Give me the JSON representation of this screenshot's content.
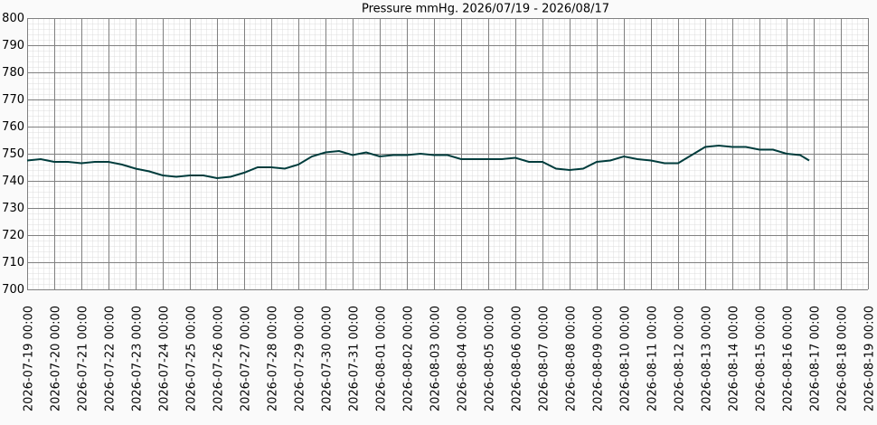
{
  "chart_data": {
    "type": "line",
    "title": "Pressure mmHg. 2026/07/19 - 2026/08/17",
    "x": [
      "2026-07-19 00:00",
      "2026-07-19 12:00",
      "2026-07-20 00:00",
      "2026-07-20 12:00",
      "2026-07-21 00:00",
      "2026-07-21 12:00",
      "2026-07-22 00:00",
      "2026-07-22 12:00",
      "2026-07-23 00:00",
      "2026-07-23 12:00",
      "2026-07-24 00:00",
      "2026-07-24 12:00",
      "2026-07-25 00:00",
      "2026-07-25 12:00",
      "2026-07-26 00:00",
      "2026-07-26 12:00",
      "2026-07-27 00:00",
      "2026-07-27 12:00",
      "2026-07-28 00:00",
      "2026-07-28 12:00",
      "2026-07-29 00:00",
      "2026-07-29 12:00",
      "2026-07-30 00:00",
      "2026-07-30 12:00",
      "2026-07-31 00:00",
      "2026-07-31 12:00",
      "2026-08-01 00:00",
      "2026-08-01 12:00",
      "2026-08-02 00:00",
      "2026-08-02 12:00",
      "2026-08-03 00:00",
      "2026-08-03 12:00",
      "2026-08-04 00:00",
      "2026-08-04 12:00",
      "2026-08-05 00:00",
      "2026-08-05 12:00",
      "2026-08-06 00:00",
      "2026-08-06 12:00",
      "2026-08-07 00:00",
      "2026-08-07 12:00",
      "2026-08-08 00:00",
      "2026-08-08 12:00",
      "2026-08-09 00:00",
      "2026-08-09 12:00",
      "2026-08-10 00:00",
      "2026-08-10 12:00",
      "2026-08-11 00:00",
      "2026-08-11 12:00",
      "2026-08-12 00:00",
      "2026-08-12 12:00",
      "2026-08-13 00:00",
      "2026-08-13 12:00",
      "2026-08-14 00:00",
      "2026-08-14 12:00",
      "2026-08-15 00:00",
      "2026-08-15 12:00",
      "2026-08-16 00:00",
      "2026-08-16 12:00",
      "2026-08-16 20:00"
    ],
    "series": [
      {
        "name": "Pressure",
        "color": "#003c3c",
        "values": [
          747.5,
          748,
          747,
          747,
          746.5,
          747,
          747,
          746,
          744.5,
          743.5,
          742,
          741.5,
          742,
          742,
          741,
          741.5,
          743,
          745,
          745,
          744.5,
          746,
          749,
          750.5,
          751,
          749.5,
          750.5,
          749,
          749.5,
          749.5,
          750,
          749.5,
          749.5,
          748,
          748,
          748,
          748,
          748.5,
          747,
          747,
          744.5,
          744,
          744.5,
          747,
          747.5,
          749,
          748,
          747.5,
          746.5,
          746.5,
          749.5,
          752.5,
          753,
          752.5,
          752.5,
          751.5,
          751.5,
          750,
          749.5,
          747.5
        ]
      }
    ],
    "xlim": [
      "2026-07-19 00:00",
      "2026-08-19 00:00"
    ],
    "xticks": [
      "2026-07-19 00:00",
      "2026-07-20 00:00",
      "2026-07-21 00:00",
      "2026-07-22 00:00",
      "2026-07-23 00:00",
      "2026-07-24 00:00",
      "2026-07-25 00:00",
      "2026-07-26 00:00",
      "2026-07-27 00:00",
      "2026-07-28 00:00",
      "2026-07-29 00:00",
      "2026-07-30 00:00",
      "2026-07-31 00:00",
      "2026-08-01 00:00",
      "2026-08-02 00:00",
      "2026-08-03 00:00",
      "2026-08-04 00:00",
      "2026-08-05 00:00",
      "2026-08-06 00:00",
      "2026-08-07 00:00",
      "2026-08-08 00:00",
      "2026-08-09 00:00",
      "2026-08-10 00:00",
      "2026-08-11 00:00",
      "2026-08-12 00:00",
      "2026-08-13 00:00",
      "2026-08-14 00:00",
      "2026-08-15 00:00",
      "2026-08-16 00:00",
      "2026-08-17 00:00",
      "2026-08-18 00:00",
      "2026-08-19 00:00"
    ],
    "ylim": [
      700,
      800
    ],
    "yticks": [
      700,
      710,
      720,
      730,
      740,
      750,
      760,
      770,
      780,
      790,
      800
    ],
    "grid": true
  }
}
